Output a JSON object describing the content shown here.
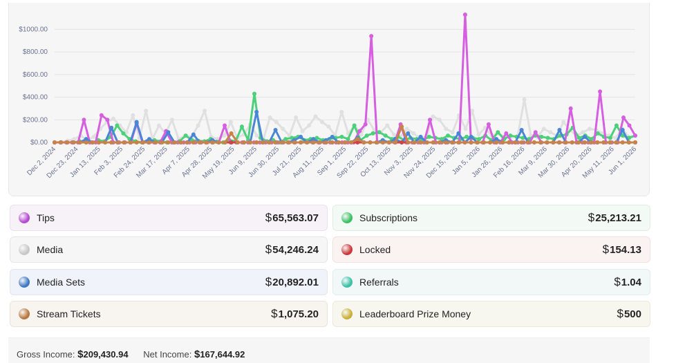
{
  "chart_data": {
    "type": "line",
    "title": "",
    "xlabel": "",
    "ylabel": "",
    "ylim": [
      0,
      1100
    ],
    "yticks": [
      "$0.00",
      "$200.00",
      "$400.00",
      "$600.00",
      "$800.00",
      "$1000.00"
    ],
    "x_tick_labels": [
      "Dec 2, 2024",
      "Dec 23, 2024",
      "Jan 13, 2025",
      "Feb 3, 2025",
      "Feb 24, 2025",
      "Mar 17, 2025",
      "Apr 7, 2025",
      "Apr 28, 2025",
      "May 19, 2025",
      "Jun 9, 2025",
      "Jun 30, 2025",
      "Jul 21, 2025",
      "Aug 11, 2025",
      "Sep 1, 2025",
      "Sep 22, 2025",
      "Oct 13, 2025",
      "Nov 3, 2025",
      "Nov 24, 2025",
      "Dec 15, 2025",
      "Jan 5, 2026",
      "Jan 26, 2026",
      "Feb 16, 2026",
      "Mar 9, 2026",
      "Mar 30, 2026",
      "Apr 20, 2026",
      "May 11, 2026",
      "Jun 1, 2026"
    ],
    "grid": true,
    "legend": "none",
    "series": [
      {
        "name": "Media",
        "color": "#e0e0e0",
        "values": [
          0,
          5,
          15,
          30,
          60,
          20,
          50,
          120,
          180,
          210,
          150,
          90,
          240,
          40,
          280,
          30,
          150,
          80,
          200,
          30,
          60,
          50,
          150,
          280,
          50,
          30,
          60,
          180,
          40,
          70,
          160,
          60,
          30,
          220,
          180,
          120,
          60,
          220,
          100,
          150,
          230,
          180,
          140,
          60,
          270,
          80,
          150,
          70,
          200,
          110,
          90,
          150,
          70,
          50,
          120,
          80,
          40,
          50,
          230,
          200,
          120,
          90,
          240,
          120,
          280,
          70,
          130,
          60,
          80,
          50,
          50,
          60,
          380,
          60,
          50,
          120,
          90,
          60,
          180,
          110,
          60,
          90,
          120,
          110,
          80,
          60,
          40,
          120,
          50,
          60
        ]
      },
      {
        "name": "Subscriptions",
        "color": "#4cd07a",
        "values": [
          0,
          0,
          0,
          0,
          10,
          5,
          0,
          20,
          10,
          50,
          150,
          80,
          30,
          10,
          0,
          5,
          20,
          10,
          0,
          0,
          10,
          60,
          20,
          15,
          10,
          30,
          5,
          0,
          20,
          10,
          140,
          20,
          430,
          40,
          10,
          20,
          0,
          30,
          40,
          50,
          20,
          30,
          40,
          20,
          30,
          40,
          50,
          30,
          150,
          20,
          60,
          80,
          90,
          60,
          30,
          50,
          20,
          40,
          30,
          20,
          50,
          40,
          30,
          60,
          40,
          30,
          50,
          40,
          30,
          60,
          20,
          90,
          30,
          60,
          50,
          40,
          30,
          60,
          50,
          40,
          30,
          60,
          70,
          130,
          40,
          60,
          30,
          80,
          50,
          40,
          150,
          60,
          40,
          60
        ]
      },
      {
        "name": "Tips",
        "color": "#d65fe0",
        "values": [
          0,
          0,
          0,
          0,
          0,
          200,
          0,
          0,
          240,
          200,
          0,
          0,
          0,
          0,
          170,
          0,
          0,
          0,
          0,
          100,
          0,
          0,
          0,
          0,
          0,
          0,
          0,
          0,
          0,
          150,
          0,
          0,
          0,
          0,
          0,
          0,
          0,
          0,
          0,
          0,
          0,
          0,
          0,
          0,
          0,
          0,
          0,
          0,
          0,
          0,
          0,
          0,
          100,
          160,
          940,
          0,
          0,
          0,
          0,
          160,
          0,
          0,
          0,
          0,
          200,
          0,
          0,
          0,
          0,
          0,
          1140,
          0,
          0,
          0,
          160,
          0,
          0,
          80,
          0,
          0,
          0,
          0,
          90,
          0,
          0,
          0,
          0,
          0,
          300,
          0,
          0,
          0,
          0,
          450,
          0,
          0,
          0,
          220,
          150,
          60
        ]
      },
      {
        "name": "Media Sets",
        "color": "#4a86d6",
        "values": [
          0,
          0,
          0,
          0,
          0,
          30,
          0,
          0,
          0,
          130,
          0,
          0,
          0,
          180,
          0,
          30,
          0,
          0,
          90,
          0,
          0,
          0,
          70,
          0,
          0,
          20,
          0,
          0,
          0,
          0,
          0,
          0,
          270,
          0,
          0,
          110,
          0,
          0,
          20,
          50,
          0,
          30,
          0,
          20,
          50,
          0,
          0,
          0,
          40,
          0,
          0,
          0,
          20,
          0,
          30,
          0,
          80,
          0,
          50,
          0,
          0,
          0,
          20,
          0,
          80,
          0,
          50,
          0,
          0,
          0,
          30,
          0,
          0,
          0,
          110,
          0,
          0,
          0,
          0,
          0,
          110,
          0,
          0,
          0,
          50,
          0,
          0,
          0,
          0,
          0,
          110,
          0,
          0
        ]
      },
      {
        "name": "Locked",
        "color": "#d04444",
        "values": [
          0,
          0,
          0,
          0,
          0,
          0,
          0,
          0,
          0,
          0,
          0,
          0,
          0,
          0,
          0,
          0,
          0,
          0,
          0,
          0,
          0,
          0,
          0,
          0,
          0,
          0,
          0,
          0,
          0,
          0,
          0,
          0,
          0,
          0,
          0,
          0,
          0,
          0,
          0,
          0,
          0,
          0,
          0,
          0,
          0,
          0,
          0,
          0,
          0,
          0,
          0,
          0,
          0,
          0,
          0,
          0,
          0,
          0,
          0,
          0,
          0,
          0,
          0,
          0,
          0,
          0,
          0,
          0,
          0,
          0,
          0,
          0,
          0,
          0,
          0,
          0,
          0,
          0,
          0,
          0,
          0,
          0,
          0,
          0,
          0,
          0,
          0,
          0,
          0,
          0,
          0,
          0,
          0
        ]
      },
      {
        "name": "Stream Tickets",
        "color": "#c7844a",
        "values": [
          0,
          0,
          0,
          0,
          0,
          0,
          0,
          0,
          0,
          0,
          0,
          0,
          0,
          0,
          0,
          0,
          0,
          0,
          0,
          0,
          0,
          0,
          0,
          0,
          0,
          0,
          0,
          0,
          80,
          0,
          0,
          0,
          0,
          0,
          0,
          0,
          0,
          0,
          0,
          0,
          0,
          0,
          0,
          0,
          0,
          0,
          0,
          0,
          30,
          0,
          0,
          0,
          0,
          0,
          0,
          140,
          0,
          0,
          0,
          0,
          0,
          0,
          0,
          0,
          0,
          0,
          0,
          0,
          0,
          0,
          0,
          0,
          0,
          0,
          0,
          0,
          0,
          0,
          0,
          0,
          0,
          0,
          0,
          0,
          0,
          0,
          0,
          0,
          0,
          0,
          0,
          0,
          0
        ]
      }
    ]
  },
  "legend_items": [
    {
      "name": "Tips",
      "amount": "65,563.07",
      "color": "#b44ad0",
      "bg": "#f7f1f8",
      "border": "#ecdff0"
    },
    {
      "name": "Subscriptions",
      "amount": "25,213.21",
      "color": "#3cc064",
      "bg": "#f3f9f4",
      "border": "#e0efe4"
    },
    {
      "name": "Media",
      "amount": "54,246.24",
      "color": "#c8c8c8",
      "bg": "#f6f6f6",
      "border": "#e6e6e6"
    },
    {
      "name": "Locked",
      "amount": "154.13",
      "color": "#c93838",
      "bg": "#fbf2f2",
      "border": "#f0e0e0"
    },
    {
      "name": "Media Sets",
      "amount": "20,892.01",
      "color": "#3f77c4",
      "bg": "#f0f4fa",
      "border": "#dfe6f2"
    },
    {
      "name": "Referrals",
      "amount": "1.04",
      "color": "#3cbfa6",
      "bg": "#f1f8f7",
      "border": "#dfefeb"
    },
    {
      "name": "Stream Tickets",
      "amount": "1,075.20",
      "color": "#b8773e",
      "bg": "#f8f4f0",
      "border": "#ece3da"
    },
    {
      "name": "Leaderboard Prize Money",
      "amount": "500",
      "color": "#c8b03c",
      "bg": "#f8f7ef",
      "border": "#ecead9"
    }
  ],
  "currency_symbol": "$",
  "footer": {
    "gross_label": "Gross Income:",
    "gross_value": "209,430.94",
    "net_label": "Net Income:",
    "net_value": "167,644.92"
  }
}
